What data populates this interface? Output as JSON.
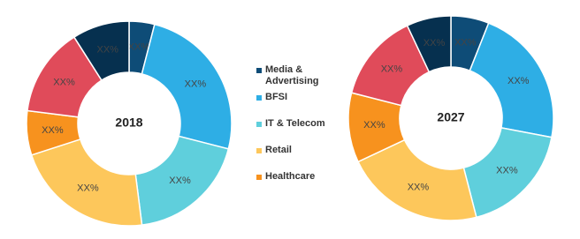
{
  "chart_data": [
    {
      "type": "donut",
      "title": "2018",
      "categories": [
        "Media & Advertising",
        "BFSI",
        "IT & Telecom",
        "Retail",
        "Healthcare",
        null,
        null
      ],
      "values": [
        4,
        25,
        19,
        22,
        7,
        14,
        9
      ],
      "value_labels": [
        "XX%",
        "XX%",
        "XX%",
        "XX%",
        "XX%",
        "XX%",
        "XX%"
      ],
      "colors": [
        "#0e4c77",
        "#2eaee5",
        "#5fcfdc",
        "#fdc75b",
        "#f7921e",
        "#e04b5a",
        "#06304f"
      ]
    },
    {
      "type": "donut",
      "title": "2027",
      "categories": [
        "Media & Advertising",
        "BFSI",
        "IT & Telecom",
        "Retail",
        "Healthcare",
        null,
        null
      ],
      "values": [
        6,
        22,
        18,
        22,
        11,
        14,
        7
      ],
      "value_labels": [
        "XX%",
        "XX%",
        "XX%",
        "XX%",
        "XX%",
        "XX%",
        "XX%"
      ],
      "colors": [
        "#0e4c77",
        "#2eaee5",
        "#5fcfdc",
        "#fdc75b",
        "#f7921e",
        "#e04b5a",
        "#06304f"
      ]
    }
  ]
}
